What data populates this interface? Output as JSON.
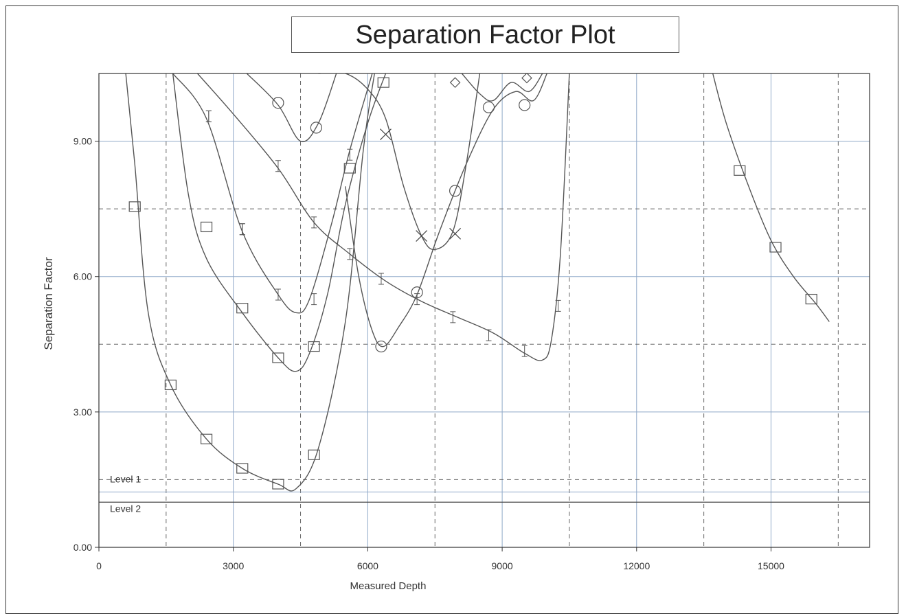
{
  "chart_data": {
    "type": "line",
    "title": "Separation Factor Plot",
    "xlabel": "Measured Depth",
    "ylabel": "Separation Factor",
    "xlim": [
      0,
      17200
    ],
    "ylim": [
      0,
      10.5
    ],
    "xticks": [
      0,
      3000,
      6000,
      9000,
      12000,
      15000
    ],
    "xtick_labels": [
      "0",
      "3000",
      "6000",
      "9000",
      "12000",
      "15000"
    ],
    "yticks": [
      0,
      3,
      6,
      9
    ],
    "ytick_labels": [
      "0.00",
      "3.00",
      "6.00",
      "9.00"
    ],
    "grid": true,
    "legend": "none",
    "line_color": "#555555",
    "grid_color": "#8fa8c8",
    "x_dashed_lines": [
      1500,
      4500,
      7500,
      10500,
      13500,
      16500
    ],
    "y_dashed_lines": [
      4.5,
      7.5
    ],
    "levels": [
      {
        "name": "Level 1",
        "value": 1.5
      },
      {
        "name": "Level 2",
        "value": 1.0
      }
    ],
    "series": [
      {
        "marker": "square",
        "points": [
          [
            600,
            10.5
          ],
          [
            800,
            8.5
          ],
          [
            1100,
            5.2
          ],
          [
            1600,
            3.6
          ],
          [
            2400,
            2.4
          ],
          [
            3200,
            1.75
          ],
          [
            4000,
            1.4
          ],
          [
            4400,
            1.3
          ],
          [
            4900,
            2.2
          ],
          [
            5500,
            5.0
          ],
          [
            5900,
            8.8
          ],
          [
            6150,
            10.5
          ]
        ],
        "marker_points": [
          [
            800,
            7.55
          ],
          [
            1600,
            3.6
          ],
          [
            2400,
            2.4
          ],
          [
            3200,
            1.75
          ],
          [
            4000,
            1.4
          ],
          [
            4800,
            2.05
          ]
        ]
      },
      {
        "marker": "square",
        "points": [
          [
            1650,
            10.5
          ],
          [
            2000,
            7.8
          ],
          [
            2400,
            6.4
          ],
          [
            3200,
            5.2
          ],
          [
            4000,
            4.2
          ],
          [
            4400,
            3.9
          ],
          [
            4700,
            4.3
          ],
          [
            5100,
            5.6
          ],
          [
            5500,
            7.6
          ],
          [
            6000,
            9.4
          ],
          [
            6400,
            10.5
          ]
        ],
        "marker_points": [
          [
            2400,
            7.1
          ],
          [
            3200,
            5.3
          ],
          [
            4000,
            4.2
          ],
          [
            4800,
            4.45
          ],
          [
            5600,
            8.4
          ],
          [
            6350,
            10.3
          ]
        ]
      },
      {
        "marker": "tick",
        "points": [
          [
            1650,
            10.5
          ],
          [
            2400,
            9.5
          ],
          [
            3200,
            7.0
          ],
          [
            4000,
            5.6
          ],
          [
            4400,
            5.2
          ],
          [
            4700,
            5.5
          ],
          [
            5200,
            7.2
          ],
          [
            5600,
            8.8
          ],
          [
            6100,
            10.5
          ]
        ],
        "marker_points": [
          [
            2450,
            9.55
          ],
          [
            3200,
            7.05
          ],
          [
            4000,
            5.6
          ],
          [
            4800,
            5.5
          ],
          [
            5600,
            8.7
          ]
        ]
      },
      {
        "marker": "tick",
        "points": [
          [
            2200,
            10.5
          ],
          [
            3000,
            9.6
          ],
          [
            4000,
            8.4
          ],
          [
            4800,
            7.2
          ],
          [
            5600,
            6.5
          ],
          [
            6400,
            5.9
          ],
          [
            7200,
            5.45
          ],
          [
            8000,
            5.1
          ],
          [
            8800,
            4.75
          ],
          [
            9500,
            4.3
          ],
          [
            9900,
            4.15
          ],
          [
            10100,
            4.6
          ],
          [
            10300,
            6.5
          ],
          [
            10500,
            10.5
          ]
        ],
        "marker_points": [
          [
            2450,
            9.55
          ],
          [
            3200,
            7.05
          ],
          [
            4000,
            8.45
          ],
          [
            4800,
            7.2
          ],
          [
            5600,
            6.5
          ],
          [
            6300,
            5.95
          ],
          [
            7100,
            5.5
          ],
          [
            7900,
            5.1
          ],
          [
            8700,
            4.7
          ],
          [
            9500,
            4.35
          ],
          [
            10250,
            5.35
          ]
        ]
      },
      {
        "marker": "circle",
        "points": [
          [
            3300,
            10.5
          ],
          [
            4000,
            9.8
          ],
          [
            4500,
            9.0
          ],
          [
            4900,
            9.4
          ],
          [
            5300,
            10.5
          ]
        ],
        "marker_points": [
          [
            4000,
            9.85
          ],
          [
            4850,
            9.3
          ]
        ]
      },
      {
        "marker": "circle",
        "points": [
          [
            5500,
            8.0
          ],
          [
            5800,
            6.0
          ],
          [
            6100,
            4.8
          ],
          [
            6350,
            4.45
          ],
          [
            6700,
            4.9
          ],
          [
            7100,
            5.6
          ],
          [
            7600,
            7.0
          ],
          [
            8200,
            8.5
          ],
          [
            8800,
            9.7
          ],
          [
            9300,
            10.1
          ],
          [
            9700,
            9.9
          ],
          [
            10000,
            10.5
          ]
        ],
        "marker_points": [
          [
            6300,
            4.45
          ],
          [
            7100,
            5.65
          ],
          [
            7950,
            7.9
          ],
          [
            8700,
            9.75
          ],
          [
            9500,
            9.8
          ]
        ]
      },
      {
        "marker": "cross",
        "points": [
          [
            4900,
            10.5
          ],
          [
            5500,
            10.5
          ],
          [
            6000,
            10.15
          ],
          [
            6400,
            9.5
          ],
          [
            6800,
            8.0
          ],
          [
            7200,
            6.9
          ],
          [
            7500,
            6.6
          ],
          [
            7900,
            7.0
          ],
          [
            8200,
            8.5
          ],
          [
            8500,
            10.5
          ]
        ],
        "marker_points": [
          [
            6400,
            9.15
          ],
          [
            7200,
            6.9
          ],
          [
            7950,
            6.95
          ]
        ]
      },
      {
        "marker": "diamond",
        "points": [
          [
            8100,
            10.5
          ],
          [
            8500,
            10.05
          ],
          [
            8800,
            9.9
          ],
          [
            9200,
            10.3
          ],
          [
            9600,
            10.1
          ],
          [
            9900,
            10.5
          ]
        ],
        "marker_points": [
          [
            7950,
            10.3
          ],
          [
            9550,
            10.4
          ]
        ]
      },
      {
        "marker": "square",
        "points": [
          [
            13700,
            10.5
          ],
          [
            14000,
            9.4
          ],
          [
            14500,
            8.0
          ],
          [
            15000,
            6.8
          ],
          [
            15500,
            6.0
          ],
          [
            16000,
            5.4
          ],
          [
            16300,
            5.0
          ]
        ],
        "marker_points": [
          [
            14300,
            8.35
          ],
          [
            15100,
            6.65
          ],
          [
            15900,
            5.5
          ]
        ]
      }
    ]
  }
}
